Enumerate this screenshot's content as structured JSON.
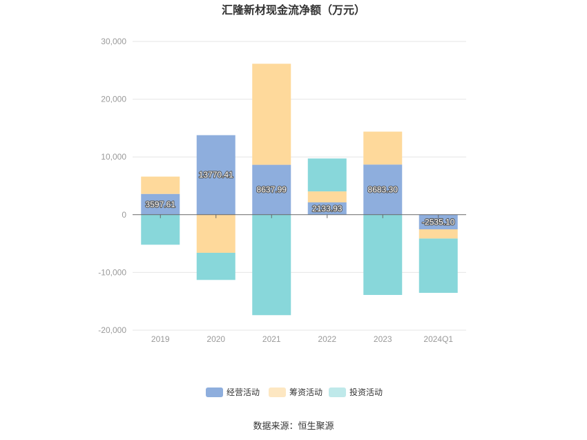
{
  "chart_data": {
    "type": "bar",
    "stacked": true,
    "title": "汇隆新材现金流净额（万元）",
    "categories": [
      "2019",
      "2020",
      "2021",
      "2022",
      "2023",
      "2024Q1"
    ],
    "series": [
      {
        "name": "经营活动",
        "color": "#8eaedd",
        "values": [
          3597.61,
          13770.41,
          8637.99,
          2133.93,
          8683.3,
          -2535.1
        ]
      },
      {
        "name": "筹资活动",
        "color": "#fed99b",
        "values": [
          3000,
          -6600,
          17500,
          1900,
          5700,
          -1600
        ]
      },
      {
        "name": "投资活动",
        "color": "#88d7da",
        "values": [
          -5200,
          -4700,
          -17400,
          5700,
          -13900,
          -9400
        ]
      }
    ],
    "data_labels": [
      "3597.61",
      "13770.41",
      "8637.99",
      "2133.93",
      "8683.30",
      "-2535.10"
    ],
    "ylim": [
      -20000,
      30000
    ],
    "yticks": [
      30000,
      20000,
      10000,
      0,
      -10000,
      -20000
    ],
    "ytick_labels": [
      "30,000",
      "20,000",
      "10,000",
      "0",
      "-10,000",
      "-20,000"
    ],
    "grid": true,
    "legend_position": "bottom"
  },
  "legend_colors": [
    "#8eaedd",
    "#fde7c2",
    "#bfe9ea"
  ],
  "source": "数据来源：恒生聚源"
}
